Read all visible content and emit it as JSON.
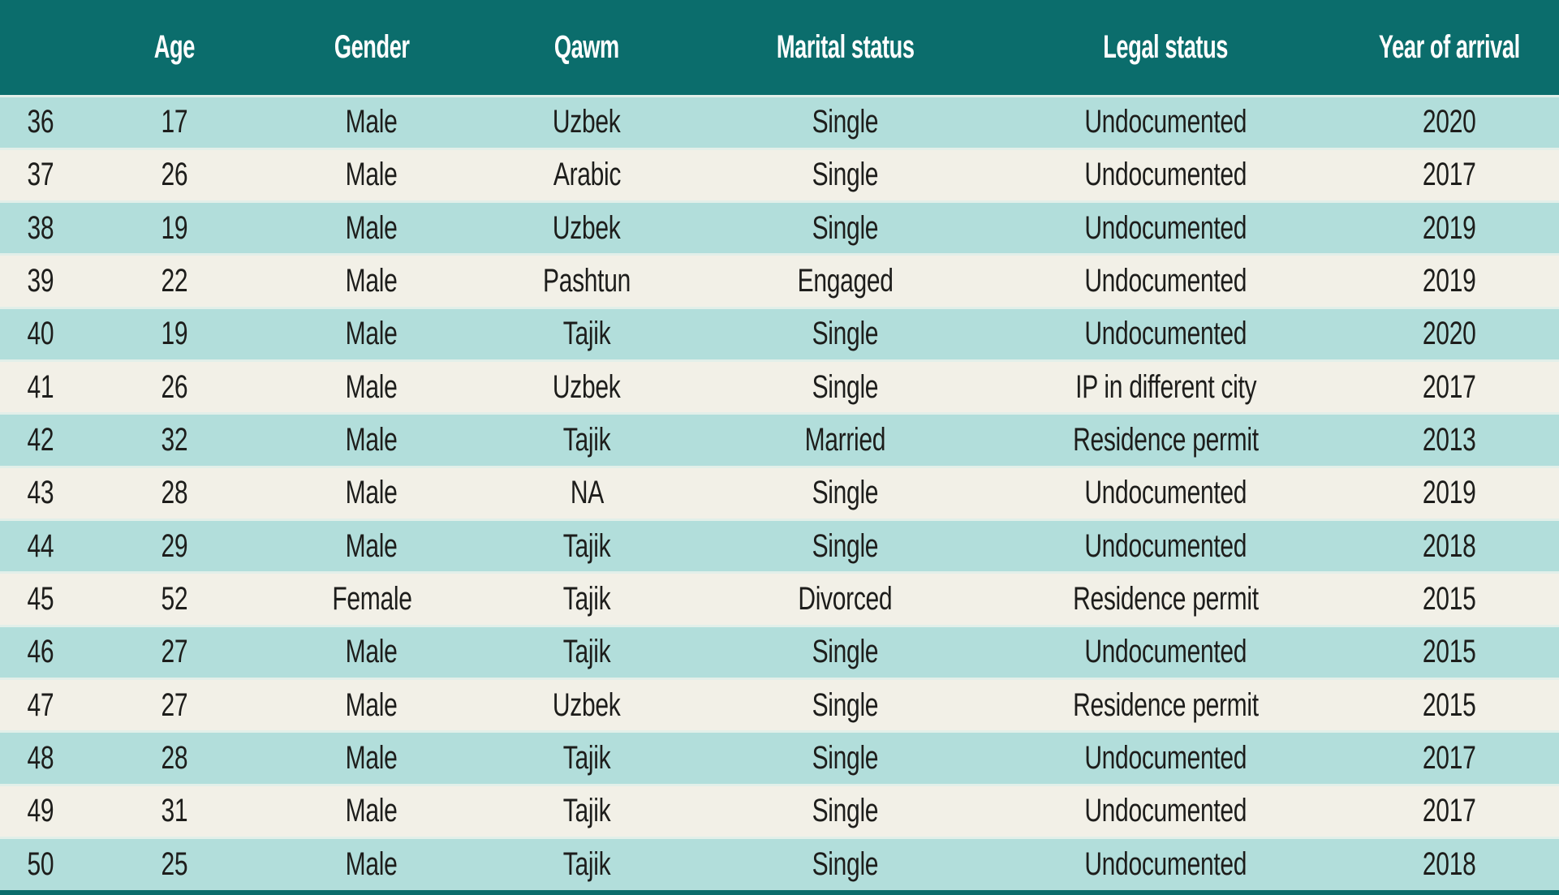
{
  "table": {
    "columns": [
      {
        "key": "id",
        "label": ""
      },
      {
        "key": "age",
        "label": "Age"
      },
      {
        "key": "gender",
        "label": "Gender"
      },
      {
        "key": "qawm",
        "label": "Qawm"
      },
      {
        "key": "marital_status",
        "label": "Marital status"
      },
      {
        "key": "legal_status",
        "label": "Legal status"
      },
      {
        "key": "year_of_arrival",
        "label": "Year of arrival"
      }
    ],
    "rows": [
      [
        "36",
        "17",
        "Male",
        "Uzbek",
        "Single",
        "Undocumented",
        "2020"
      ],
      [
        "37",
        "26",
        "Male",
        "Arabic",
        "Single",
        "Undocumented",
        "2017"
      ],
      [
        "38",
        "19",
        "Male",
        "Uzbek",
        "Single",
        "Undocumented",
        "2019"
      ],
      [
        "39",
        "22",
        "Male",
        "Pashtun",
        "Engaged",
        "Undocumented",
        "2019"
      ],
      [
        "40",
        "19",
        "Male",
        "Tajik",
        "Single",
        "Undocumented",
        "2020"
      ],
      [
        "41",
        "26",
        "Male",
        "Uzbek",
        "Single",
        "IP in different city",
        "2017"
      ],
      [
        "42",
        "32",
        "Male",
        "Tajik",
        "Married",
        "Residence permit",
        "2013"
      ],
      [
        "43",
        "28",
        "Male",
        "NA",
        "Single",
        "Undocumented",
        "2019"
      ],
      [
        "44",
        "29",
        "Male",
        "Tajik",
        "Single",
        "Undocumented",
        "2018"
      ],
      [
        "45",
        "52",
        "Female",
        "Tajik",
        "Divorced",
        "Residence permit",
        "2015"
      ],
      [
        "46",
        "27",
        "Male",
        "Tajik",
        "Single",
        "Undocumented",
        "2015"
      ],
      [
        "47",
        "27",
        "Male",
        "Uzbek",
        "Single",
        "Residence permit",
        "2015"
      ],
      [
        "48",
        "28",
        "Male",
        "Tajik",
        "Single",
        "Undocumented",
        "2017"
      ],
      [
        "49",
        "31",
        "Male",
        "Tajik",
        "Single",
        "Undocumented",
        "2017"
      ],
      [
        "50",
        "25",
        "Male",
        "Tajik",
        "Single",
        "Undocumented",
        "2018"
      ]
    ]
  },
  "colors": {
    "header_bg": "#0b6d6c",
    "header_text": "#ffffff",
    "row_teal": "#b2dedb",
    "row_cream": "#f2f0e7",
    "separator": "#e2efe9",
    "body_text": "#1d1d1b",
    "bottom_border": "#0b6d6c"
  }
}
